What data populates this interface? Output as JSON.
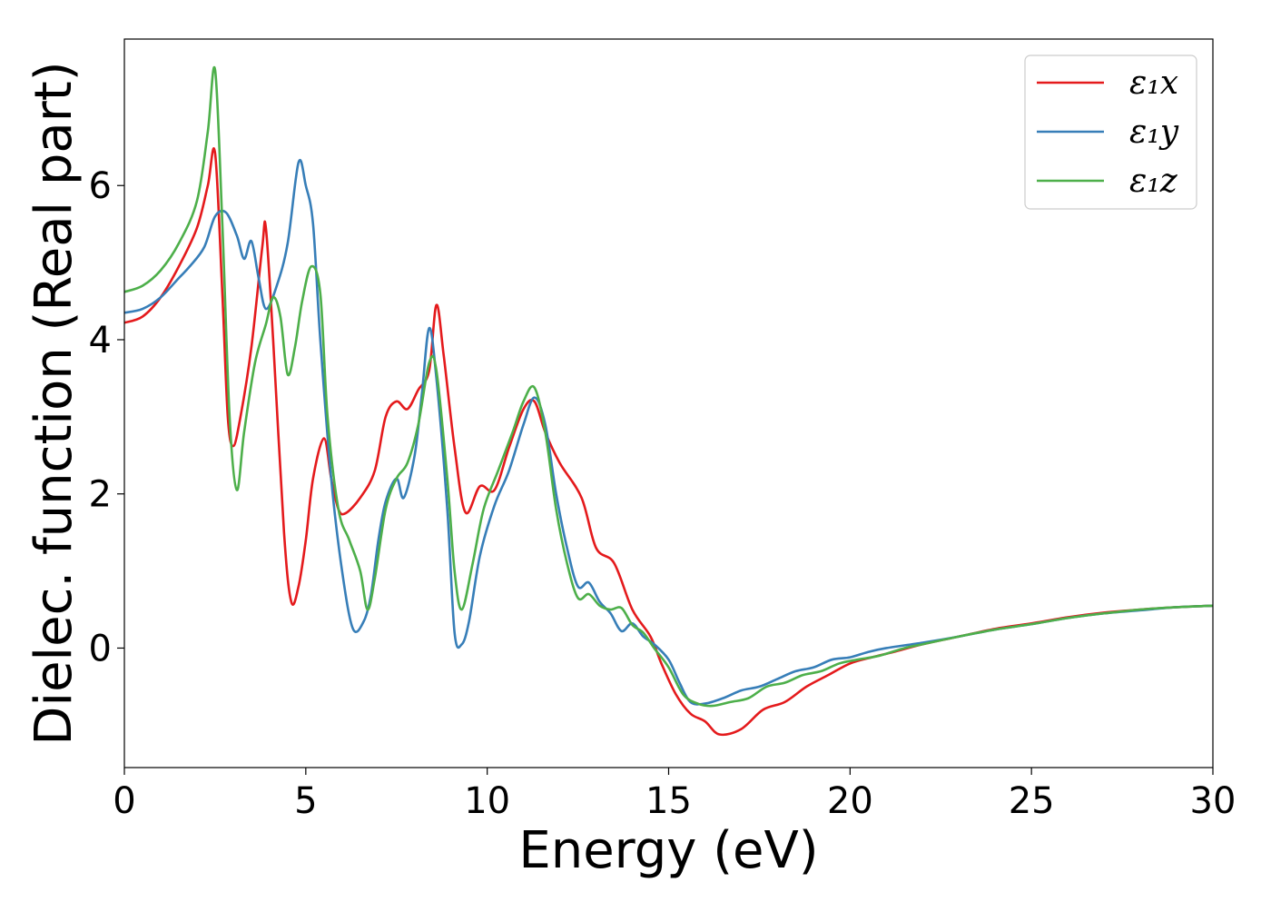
{
  "chart_data": {
    "type": "line",
    "title": "",
    "xlabel": "Energy (eV)",
    "ylabel": "Dielec. function (Real part)",
    "xlim": [
      0,
      30
    ],
    "ylim": [
      -1.55,
      7.9
    ],
    "xticks": [
      0,
      5,
      10,
      15,
      20,
      25,
      30
    ],
    "xtick_labels": [
      "0",
      "5",
      "10",
      "15",
      "20",
      "25",
      "30"
    ],
    "yticks": [
      0,
      2,
      4,
      6
    ],
    "ytick_labels": [
      "0",
      "2",
      "4",
      "6"
    ],
    "grid": false,
    "legend_position": "top-right",
    "series": [
      {
        "name": "ε₁x",
        "color": "#e41a1c",
        "points": [
          [
            0,
            4.22
          ],
          [
            0.5,
            4.3
          ],
          [
            1,
            4.55
          ],
          [
            1.5,
            4.95
          ],
          [
            2,
            5.45
          ],
          [
            2.3,
            6.0
          ],
          [
            2.5,
            6.42
          ],
          [
            2.7,
            4.6
          ],
          [
            2.85,
            3.0
          ],
          [
            3,
            2.62
          ],
          [
            3.2,
            3.0
          ],
          [
            3.5,
            3.9
          ],
          [
            3.8,
            5.2
          ],
          [
            3.9,
            5.45
          ],
          [
            4.1,
            4.0
          ],
          [
            4.4,
            1.5
          ],
          [
            4.6,
            0.6
          ],
          [
            4.8,
            0.8
          ],
          [
            5.0,
            1.4
          ],
          [
            5.2,
            2.2
          ],
          [
            5.5,
            2.72
          ],
          [
            5.7,
            2.2
          ],
          [
            5.9,
            1.8
          ],
          [
            6.1,
            1.75
          ],
          [
            6.5,
            1.95
          ],
          [
            6.9,
            2.3
          ],
          [
            7.2,
            3.0
          ],
          [
            7.5,
            3.2
          ],
          [
            7.8,
            3.1
          ],
          [
            8.1,
            3.35
          ],
          [
            8.4,
            3.6
          ],
          [
            8.6,
            4.45
          ],
          [
            8.8,
            3.8
          ],
          [
            9.1,
            2.6
          ],
          [
            9.4,
            1.76
          ],
          [
            9.8,
            2.1
          ],
          [
            10.2,
            2.05
          ],
          [
            10.6,
            2.6
          ],
          [
            11.0,
            3.1
          ],
          [
            11.3,
            3.2
          ],
          [
            11.6,
            2.8
          ],
          [
            12.0,
            2.4
          ],
          [
            12.6,
            1.95
          ],
          [
            13.0,
            1.3
          ],
          [
            13.5,
            1.1
          ],
          [
            14.0,
            0.5
          ],
          [
            14.5,
            0.15
          ],
          [
            14.8,
            -0.2
          ],
          [
            15.2,
            -0.6
          ],
          [
            15.6,
            -0.85
          ],
          [
            16.0,
            -0.95
          ],
          [
            16.4,
            -1.12
          ],
          [
            17.0,
            -1.05
          ],
          [
            17.6,
            -0.8
          ],
          [
            18.2,
            -0.7
          ],
          [
            18.8,
            -0.5
          ],
          [
            19.4,
            -0.35
          ],
          [
            20,
            -0.2
          ],
          [
            20.6,
            -0.12
          ],
          [
            21.2,
            -0.05
          ],
          [
            22,
            0.05
          ],
          [
            23,
            0.15
          ],
          [
            24,
            0.25
          ],
          [
            25,
            0.32
          ],
          [
            26,
            0.4
          ],
          [
            27,
            0.46
          ],
          [
            28,
            0.5
          ],
          [
            29,
            0.53
          ],
          [
            30,
            0.55
          ]
        ]
      },
      {
        "name": "ε₁y",
        "color": "#377eb8",
        "points": [
          [
            0,
            4.35
          ],
          [
            0.5,
            4.4
          ],
          [
            1,
            4.55
          ],
          [
            1.5,
            4.8
          ],
          [
            1.8,
            4.95
          ],
          [
            2.2,
            5.2
          ],
          [
            2.5,
            5.6
          ],
          [
            2.8,
            5.65
          ],
          [
            3.1,
            5.35
          ],
          [
            3.3,
            5.05
          ],
          [
            3.5,
            5.28
          ],
          [
            3.7,
            4.8
          ],
          [
            3.9,
            4.4
          ],
          [
            4.2,
            4.7
          ],
          [
            4.5,
            5.25
          ],
          [
            4.8,
            6.3
          ],
          [
            5.0,
            6.0
          ],
          [
            5.2,
            5.5
          ],
          [
            5.4,
            4.0
          ],
          [
            5.7,
            2.2
          ],
          [
            6.0,
            1.0
          ],
          [
            6.3,
            0.25
          ],
          [
            6.6,
            0.35
          ],
          [
            6.8,
            0.7
          ],
          [
            7.0,
            1.4
          ],
          [
            7.2,
            1.9
          ],
          [
            7.5,
            2.2
          ],
          [
            7.7,
            1.95
          ],
          [
            8.0,
            2.5
          ],
          [
            8.2,
            3.3
          ],
          [
            8.4,
            4.15
          ],
          [
            8.6,
            3.5
          ],
          [
            8.9,
            1.8
          ],
          [
            9.1,
            0.2
          ],
          [
            9.3,
            0.05
          ],
          [
            9.5,
            0.35
          ],
          [
            9.8,
            1.2
          ],
          [
            10.2,
            1.85
          ],
          [
            10.6,
            2.3
          ],
          [
            11.0,
            2.9
          ],
          [
            11.3,
            3.25
          ],
          [
            11.6,
            2.9
          ],
          [
            11.9,
            2.0
          ],
          [
            12.2,
            1.3
          ],
          [
            12.5,
            0.8
          ],
          [
            12.8,
            0.85
          ],
          [
            13.1,
            0.6
          ],
          [
            13.4,
            0.45
          ],
          [
            13.7,
            0.22
          ],
          [
            14.0,
            0.32
          ],
          [
            14.3,
            0.15
          ],
          [
            14.6,
            0.05
          ],
          [
            15.0,
            -0.15
          ],
          [
            15.3,
            -0.45
          ],
          [
            15.6,
            -0.7
          ],
          [
            16.0,
            -0.72
          ],
          [
            16.5,
            -0.65
          ],
          [
            17.0,
            -0.55
          ],
          [
            17.5,
            -0.5
          ],
          [
            18.0,
            -0.4
          ],
          [
            18.5,
            -0.3
          ],
          [
            19.0,
            -0.25
          ],
          [
            19.5,
            -0.15
          ],
          [
            20,
            -0.12
          ],
          [
            20.5,
            -0.05
          ],
          [
            21,
            0.0
          ],
          [
            22,
            0.07
          ],
          [
            23,
            0.15
          ],
          [
            24,
            0.24
          ],
          [
            25,
            0.31
          ],
          [
            26,
            0.39
          ],
          [
            27,
            0.45
          ],
          [
            28,
            0.49
          ],
          [
            29,
            0.53
          ],
          [
            30,
            0.55
          ]
        ]
      },
      {
        "name": "ε₁z",
        "color": "#4daf4a",
        "points": [
          [
            0,
            4.62
          ],
          [
            0.5,
            4.7
          ],
          [
            1,
            4.9
          ],
          [
            1.5,
            5.25
          ],
          [
            2.0,
            5.8
          ],
          [
            2.3,
            6.7
          ],
          [
            2.5,
            7.5
          ],
          [
            2.7,
            5.5
          ],
          [
            2.9,
            3.0
          ],
          [
            3.1,
            2.05
          ],
          [
            3.3,
            2.8
          ],
          [
            3.6,
            3.7
          ],
          [
            3.9,
            4.2
          ],
          [
            4.1,
            4.55
          ],
          [
            4.3,
            4.3
          ],
          [
            4.5,
            3.55
          ],
          [
            4.7,
            3.9
          ],
          [
            4.9,
            4.5
          ],
          [
            5.15,
            4.95
          ],
          [
            5.4,
            4.6
          ],
          [
            5.6,
            3.0
          ],
          [
            5.9,
            1.8
          ],
          [
            6.2,
            1.4
          ],
          [
            6.5,
            1.0
          ],
          [
            6.7,
            0.5
          ],
          [
            6.9,
            0.9
          ],
          [
            7.2,
            1.8
          ],
          [
            7.5,
            2.2
          ],
          [
            7.8,
            2.4
          ],
          [
            8.1,
            2.9
          ],
          [
            8.4,
            3.7
          ],
          [
            8.6,
            3.6
          ],
          [
            8.9,
            2.2
          ],
          [
            9.1,
            1.0
          ],
          [
            9.3,
            0.5
          ],
          [
            9.6,
            1.1
          ],
          [
            9.9,
            1.8
          ],
          [
            10.3,
            2.3
          ],
          [
            10.7,
            2.8
          ],
          [
            11.0,
            3.2
          ],
          [
            11.3,
            3.38
          ],
          [
            11.6,
            2.8
          ],
          [
            11.9,
            1.8
          ],
          [
            12.2,
            1.1
          ],
          [
            12.5,
            0.65
          ],
          [
            12.8,
            0.7
          ],
          [
            13.1,
            0.55
          ],
          [
            13.4,
            0.5
          ],
          [
            13.7,
            0.52
          ],
          [
            14.0,
            0.3
          ],
          [
            14.3,
            0.2
          ],
          [
            14.6,
            0.0
          ],
          [
            15.0,
            -0.25
          ],
          [
            15.4,
            -0.6
          ],
          [
            15.8,
            -0.72
          ],
          [
            16.2,
            -0.75
          ],
          [
            16.7,
            -0.7
          ],
          [
            17.2,
            -0.65
          ],
          [
            17.7,
            -0.5
          ],
          [
            18.2,
            -0.45
          ],
          [
            18.7,
            -0.35
          ],
          [
            19.2,
            -0.3
          ],
          [
            19.7,
            -0.2
          ],
          [
            20.2,
            -0.15
          ],
          [
            20.8,
            -0.1
          ],
          [
            21.5,
            0.0
          ],
          [
            22,
            0.05
          ],
          [
            23,
            0.15
          ],
          [
            24,
            0.24
          ],
          [
            25,
            0.31
          ],
          [
            26,
            0.39
          ],
          [
            27,
            0.45
          ],
          [
            28,
            0.5
          ],
          [
            29,
            0.53
          ],
          [
            30,
            0.55
          ]
        ]
      }
    ]
  }
}
